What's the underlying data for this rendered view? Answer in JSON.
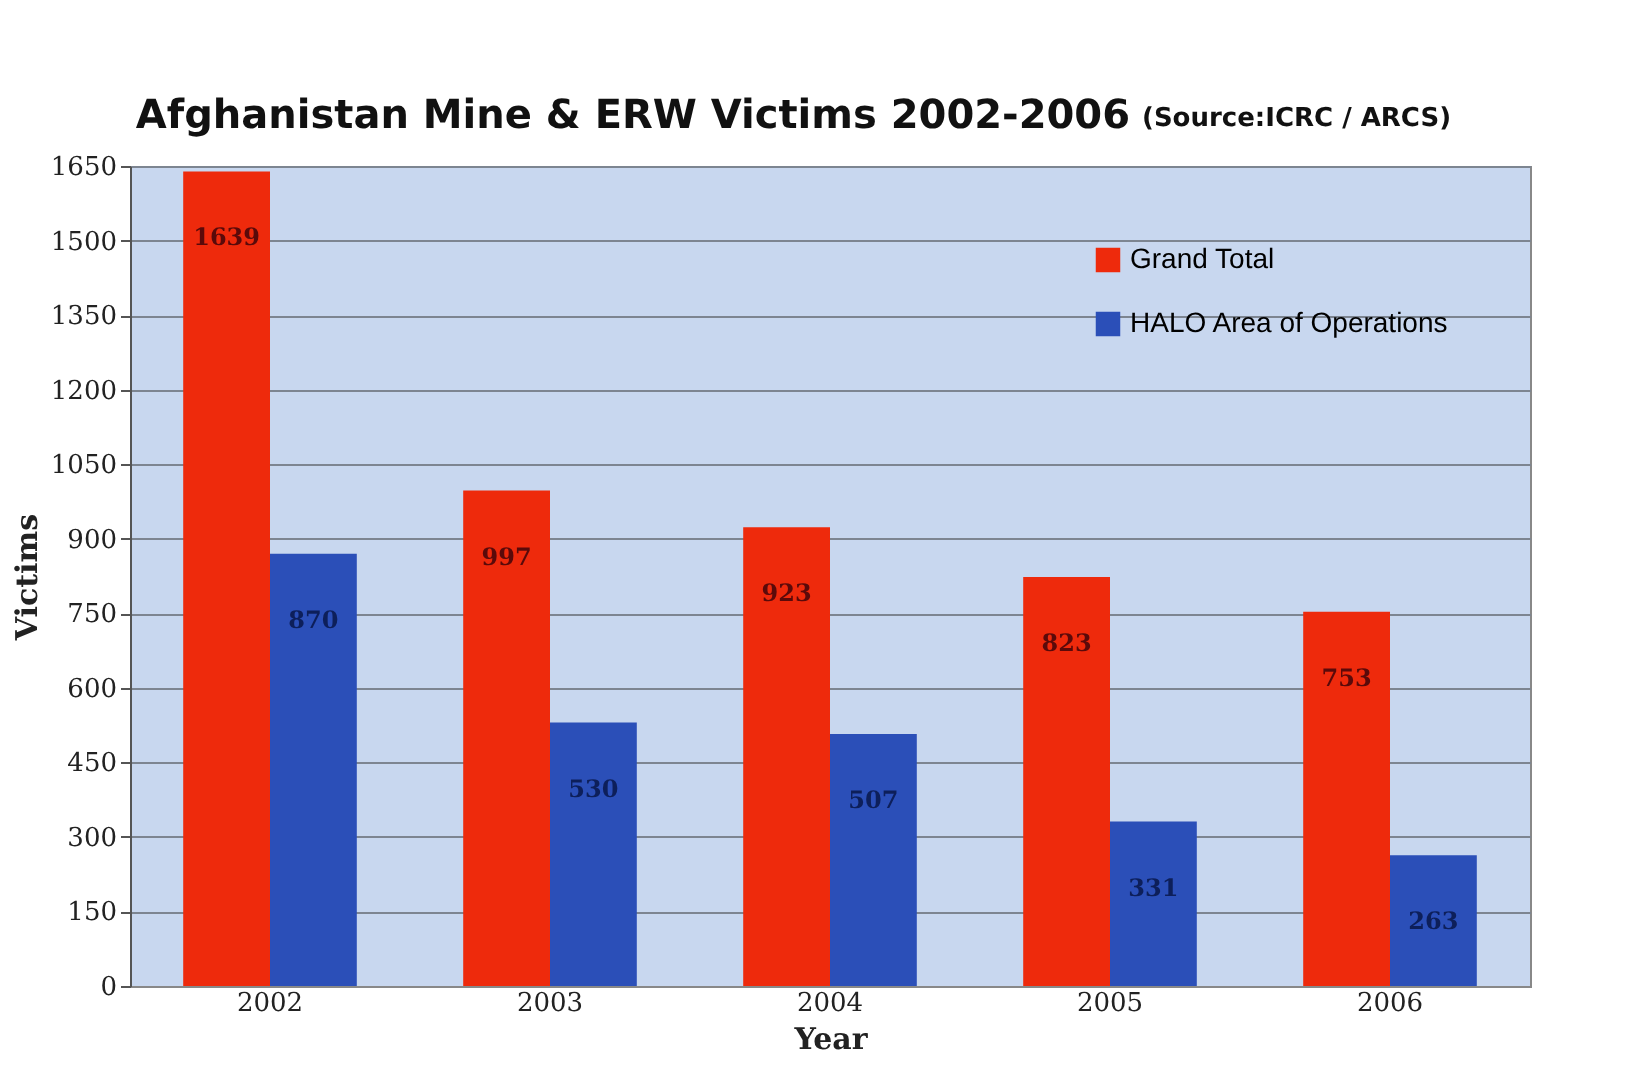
{
  "chart_data": {
    "type": "bar",
    "title": "Afghanistan Mine & ERW Victims 2002-2006",
    "annotations": [
      "(Source:ICRC / ARCS)"
    ],
    "xlabel": "Year",
    "ylabel": "Victims",
    "categories": [
      "2002",
      "2003",
      "2004",
      "2005",
      "2006"
    ],
    "series": [
      {
        "name": "Grand Total",
        "color": "#ee2a0c",
        "values": [
          1639,
          997,
          923,
          823,
          753
        ]
      },
      {
        "name": "HALO Area of Operations",
        "color": "#2b4fb8",
        "values": [
          870,
          530,
          507,
          331,
          263
        ]
      }
    ],
    "ylim": [
      0,
      1650
    ],
    "yticks": [
      0,
      150,
      300,
      450,
      600,
      750,
      900,
      1050,
      1200,
      1350,
      1500,
      1650
    ],
    "grid": "y",
    "legend": "top right",
    "data_labels": true
  }
}
